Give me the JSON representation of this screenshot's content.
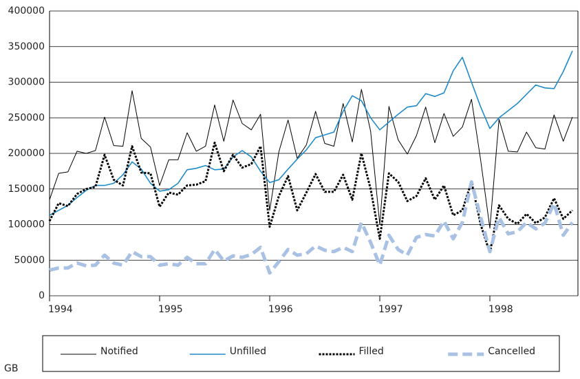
{
  "chart_data": {
    "type": "line",
    "note": "GB",
    "x": [
      1994,
      1994.083,
      1994.167,
      1994.25,
      1994.333,
      1994.417,
      1994.5,
      1994.583,
      1994.667,
      1994.75,
      1994.833,
      1994.917,
      1995,
      1995.083,
      1995.167,
      1995.25,
      1995.333,
      1995.417,
      1995.5,
      1995.583,
      1995.667,
      1995.75,
      1995.833,
      1995.917,
      1996,
      1996.083,
      1996.167,
      1996.25,
      1996.333,
      1996.417,
      1996.5,
      1996.583,
      1996.667,
      1996.75,
      1996.833,
      1996.917,
      1997,
      1997.083,
      1997.167,
      1997.25,
      1997.333,
      1997.417,
      1997.5,
      1997.583,
      1997.667,
      1997.75,
      1997.833,
      1997.917,
      1998,
      1998.083,
      1998.167,
      1998.25,
      1998.333,
      1998.417,
      1998.5,
      1998.583,
      1998.667,
      1998.75
    ],
    "xlim": [
      1994,
      1998.8
    ],
    "xticks": [
      1994,
      1995,
      1996,
      1997,
      1998
    ],
    "ylim": [
      0,
      400000
    ],
    "yticks": [
      0,
      50000,
      100000,
      150000,
      200000,
      250000,
      300000,
      350000,
      400000
    ],
    "grid": true,
    "legend": "bottom",
    "series": [
      {
        "name": "Notified",
        "color": "#000000",
        "style": "solid",
        "width": 1,
        "values": [
          135000,
          172000,
          174000,
          203000,
          200000,
          204000,
          251000,
          211000,
          210000,
          288000,
          221000,
          209000,
          155000,
          191000,
          191000,
          229000,
          203000,
          210000,
          268000,
          217000,
          275000,
          242000,
          233000,
          255000,
          120000,
          202000,
          247000,
          193000,
          212000,
          259000,
          214000,
          210000,
          270000,
          216000,
          290000,
          231000,
          100000,
          266000,
          219000,
          199000,
          225000,
          265000,
          215000,
          256000,
          224000,
          237000,
          276000,
          190000,
          95000,
          248000,
          203000,
          202000,
          230000,
          208000,
          206000,
          254000,
          217000,
          251000
        ]
      },
      {
        "name": "Unfilled",
        "color": "#1f8ac9",
        "style": "solid",
        "width": 1.6,
        "values": [
          113000,
          120000,
          127000,
          138000,
          148000,
          155000,
          155000,
          158000,
          170000,
          188000,
          178000,
          158000,
          147000,
          149000,
          158000,
          177000,
          179000,
          183000,
          177000,
          178000,
          195000,
          204000,
          195000,
          175000,
          159000,
          163000,
          178000,
          192000,
          205000,
          222000,
          226000,
          230000,
          259000,
          281000,
          274000,
          250000,
          233000,
          244000,
          255000,
          265000,
          267000,
          284000,
          280000,
          285000,
          316000,
          335000,
          300000,
          265000,
          235000,
          250000,
          260000,
          270000,
          283000,
          296000,
          292000,
          291000,
          315000,
          344000
        ]
      },
      {
        "name": "Filled",
        "color": "#000000",
        "style": "dotted",
        "width": 3,
        "values": [
          105000,
          130000,
          126000,
          143000,
          150000,
          153000,
          198000,
          163000,
          155000,
          210000,
          173000,
          172000,
          125000,
          145000,
          142000,
          155000,
          156000,
          161000,
          215000,
          175000,
          198000,
          180000,
          185000,
          210000,
          97000,
          140000,
          168000,
          120000,
          145000,
          171000,
          146000,
          146000,
          170000,
          135000,
          200000,
          150000,
          80000,
          172000,
          160000,
          133000,
          140000,
          165000,
          135000,
          155000,
          113000,
          120000,
          160000,
          100000,
          60000,
          127000,
          108000,
          101000,
          115000,
          102000,
          110000,
          137000,
          108000,
          120000
        ]
      },
      {
        "name": "Cancelled",
        "color": "#a9c1e3",
        "style": "dashed",
        "width": 5,
        "values": [
          36000,
          39000,
          39000,
          46000,
          42000,
          43000,
          57000,
          46000,
          43000,
          62000,
          55000,
          55000,
          43000,
          45000,
          43000,
          54000,
          45000,
          45000,
          65000,
          49000,
          56000,
          54000,
          58000,
          68000,
          32000,
          48000,
          65000,
          57000,
          59000,
          70000,
          64000,
          62000,
          68000,
          62000,
          103000,
          75000,
          43000,
          85000,
          65000,
          57000,
          82000,
          86000,
          84000,
          105000,
          80000,
          103000,
          160000,
          110000,
          62000,
          110000,
          87000,
          90000,
          103000,
          94000,
          102000,
          130000,
          85000,
          103000
        ]
      }
    ]
  }
}
